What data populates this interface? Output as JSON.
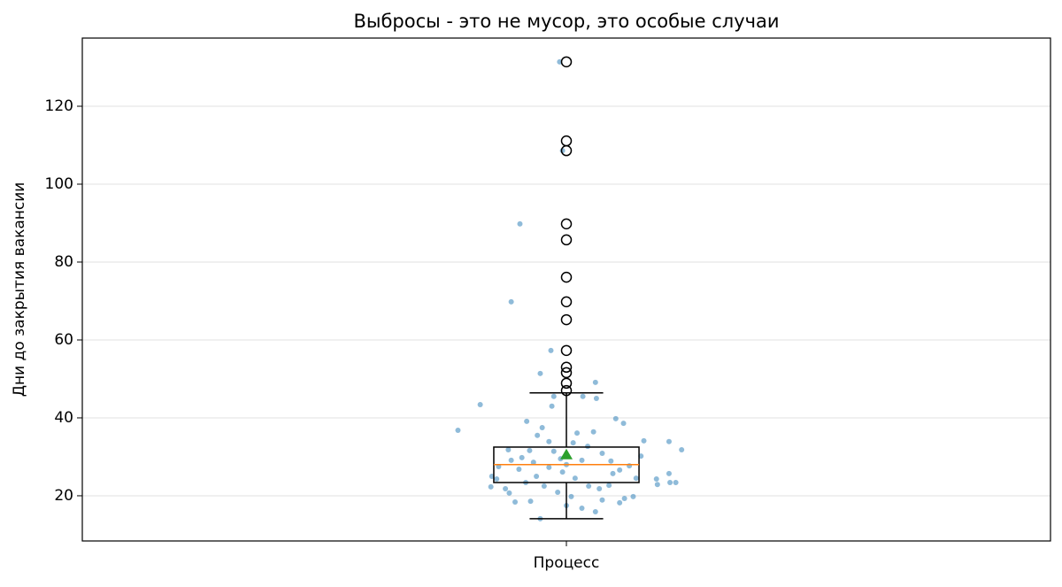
{
  "chart_data": {
    "type": "box",
    "title": "Выбросы - это не мусор, это особые случаи",
    "ylabel": "Дни до закрытия вакансии",
    "categories": [
      "Процесс"
    ],
    "xlim": [
      0.5,
      1.5
    ],
    "ylim": [
      8.4,
      137.5
    ],
    "yticks": [
      20,
      40,
      60,
      80,
      100,
      120
    ],
    "grid": true,
    "box": {
      "whislo": 14.1,
      "q1": 23.4,
      "med": 28,
      "q3": 32.5,
      "whishi": 46.4,
      "mean": 30.5,
      "fliers": [
        131.4,
        111.1,
        108.6,
        89.8,
        85.7,
        76.1,
        69.8,
        65.2,
        57.3,
        53,
        51.6,
        48.9,
        47.0
      ],
      "box_color": "#000000",
      "median_color": "#ff7f0e",
      "mean_color": "#2ca02c"
    },
    "points": {
      "color": "#1f77b4",
      "x": [
        0.888,
        0.911,
        0.952,
        0.943,
        0.993,
        0.996,
        0.984,
        0.973,
        0.987,
        0.985,
        1.03,
        1.031,
        1.017,
        1.051,
        1.059,
        1.119,
        1.106,
        1.08,
        1.093,
        1.094,
        1.107,
        1.113,
        1.106,
        1.072,
        1.069,
        1.06,
        1.055,
        1.03,
        1.016,
        1.0,
        0.973,
        0.963,
        0.947,
        0.941,
        0.922,
        0.923,
        0.93,
        0.943,
        0.954,
        0.962,
        0.97,
        0.975,
        0.982,
        0.987,
        0.994,
        1.007,
        1.011,
        1.022,
        1.028,
        1.037,
        1.046,
        1.055,
        1.065,
        1.077,
        1.044,
        1.034,
        1.023,
        1.009,
        0.996,
        0.982,
        0.969,
        0.958,
        0.951,
        0.937,
        0.928,
        1.005,
        0.991,
        0.977,
        1.037,
        1.048,
        1.0,
        1.016,
        0.966,
        0.94,
        0.959
      ],
      "y": [
        36.8,
        43.4,
        89.8,
        69.8,
        131.4,
        108.6,
        57.3,
        51.4,
        45.5,
        43.0,
        49.1,
        45.0,
        45.5,
        39.8,
        38.6,
        31.8,
        33.9,
        34.1,
        24.3,
        22.9,
        23.4,
        23.4,
        25.7,
        24.5,
        19.8,
        19.3,
        18.2,
        15.9,
        16.8,
        17.5,
        14.1,
        18.6,
        18.4,
        20.7,
        22.3,
        25.0,
        27.5,
        29.1,
        29.8,
        31.6,
        35.5,
        37.5,
        33.9,
        31.4,
        29.5,
        33.6,
        36.1,
        32.7,
        36.4,
        30.9,
        28.9,
        26.6,
        27.7,
        30.2,
        22.7,
        21.8,
        22.5,
        24.5,
        26.1,
        27.3,
        25.0,
        23.4,
        26.8,
        21.8,
        24.3,
        19.8,
        20.9,
        22.5,
        18.9,
        25.7,
        28.0,
        29.1,
        28.6,
        31.8,
        39.1
      ]
    }
  }
}
